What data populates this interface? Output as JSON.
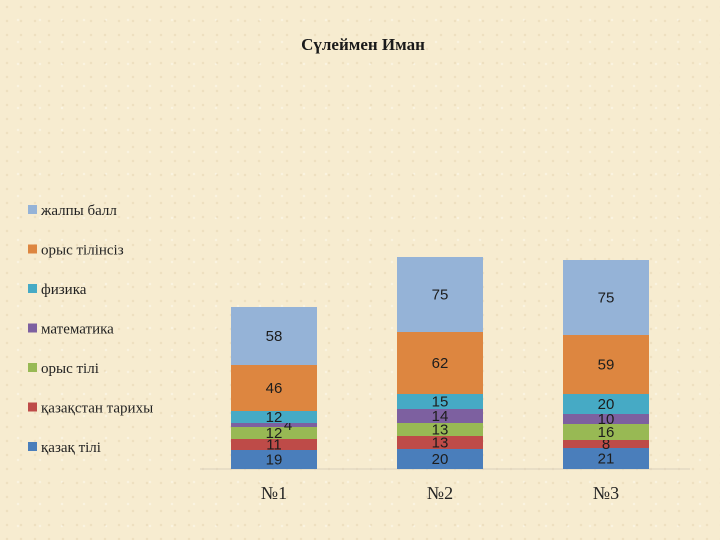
{
  "chart_data": {
    "type": "bar",
    "stacked": true,
    "title": "Сүлеймен Иман",
    "categories": [
      "№1",
      "№2",
      "№3"
    ],
    "series": [
      {
        "name": "қазақ тілі",
        "color": "#4a7ebb",
        "values": [
          19,
          20,
          21
        ],
        "labels": [
          "19",
          "20",
          "21"
        ]
      },
      {
        "name": "қазақстан тарихы",
        "color": "#be4b48",
        "values": [
          11,
          13,
          8
        ],
        "labels": [
          "11",
          "13",
          "8"
        ]
      },
      {
        "name": "орыс тілі",
        "color": "#98b954",
        "values": [
          12,
          13,
          16
        ],
        "labels": [
          "12",
          "13",
          "16"
        ]
      },
      {
        "name": "математика",
        "color": "#7d60a0",
        "values": [
          4,
          14,
          10
        ],
        "labels": [
          "4",
          "14",
          "10"
        ]
      },
      {
        "name": "физика",
        "color": "#46aac5",
        "values": [
          12,
          15,
          20
        ],
        "labels": [
          "12",
          "15",
          "20"
        ]
      },
      {
        "name": "орыс тілінсіз",
        "color": "#dd8640",
        "values": [
          46,
          62,
          59
        ],
        "labels": [
          "46",
          "62",
          "59"
        ]
      },
      {
        "name": "жалпы балл",
        "color": "#95b3d7",
        "values": [
          58,
          75,
          75
        ],
        "labels": [
          "58",
          "75",
          "75"
        ]
      }
    ],
    "legend_position": "left",
    "grid": false
  }
}
